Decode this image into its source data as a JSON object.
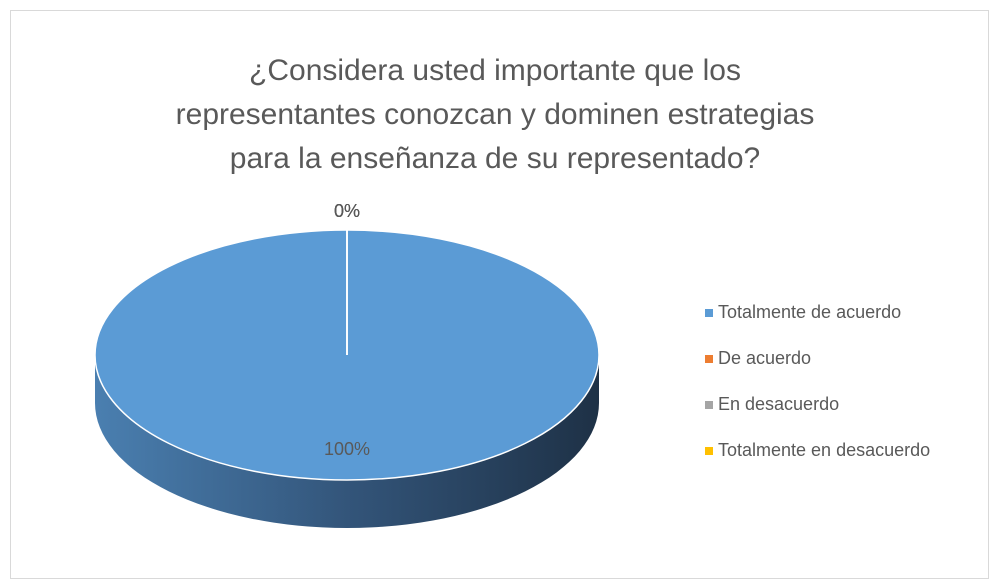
{
  "chart_data": {
    "type": "pie",
    "title": [
      "¿Considera usted importante que los",
      "representantes conozcan y dominen estrategias",
      "para la enseñanza de su representado?"
    ],
    "categories": [
      "Totalmente de acuerdo",
      "De acuerdo",
      "En desacuerdo",
      "Totalmente en desacuerdo"
    ],
    "values": [
      100,
      0,
      0,
      0
    ],
    "value_labels": [
      "100%",
      "0%",
      "0%",
      "0%"
    ],
    "colors": [
      "#5b9bd5",
      "#ed7d31",
      "#a5a5a5",
      "#ffc000"
    ],
    "legend": "right"
  }
}
